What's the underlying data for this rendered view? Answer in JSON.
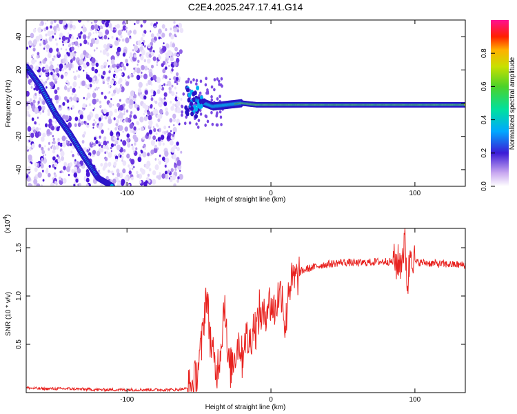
{
  "title": "C2E4.2025.247.17.41.G14",
  "chart_data": [
    {
      "type": "heatmap",
      "xlabel": "Height of straight line (km)",
      "ylabel": "Frequency (Hz)",
      "xlim": [
        -170,
        135
      ],
      "ylim": [
        -50,
        50
      ],
      "xticks": [
        -100,
        0,
        100
      ],
      "yticks": [
        -40,
        -20,
        0,
        20,
        40
      ],
      "colorbar": {
        "label": "Normalized spectral amplitude",
        "range": [
          0,
          1
        ],
        "ticks": [
          0.0,
          0.2,
          0.4,
          0.6,
          0.8
        ]
      },
      "noise_region_x": [
        -170,
        -62
      ],
      "ridges": [
        {
          "x": [
            -170,
            -160,
            -150,
            -140,
            -130,
            -120,
            -110
          ],
          "y": [
            22,
            10,
            -6,
            -18,
            -32,
            -45,
            -50
          ]
        },
        {
          "x": [
            -52,
            -40,
            -30,
            -20,
            -10,
            0,
            50,
            100,
            135
          ],
          "y": [
            2,
            -2,
            -1,
            0,
            -1,
            -1,
            -1,
            -1,
            -1
          ]
        }
      ]
    },
    {
      "type": "line",
      "xlabel": "Height of straight line (km)",
      "ylabel": "SNR (10 * v/v)",
      "y_multiplier": "(x10",
      "y_multiplier_exp": "4",
      "y_multiplier_close": ")",
      "xlim": [
        -170,
        135
      ],
      "ylim": [
        0,
        1.7
      ],
      "xticks": [
        -100,
        0,
        100
      ],
      "yticks": [
        0.5,
        1.0,
        1.5
      ],
      "series": [
        {
          "color": "#e8221f",
          "x": [
            -170,
            -160,
            -140,
            -120,
            -100,
            -80,
            -65,
            -55,
            -52,
            -48,
            -45,
            -42,
            -40,
            -38,
            -35,
            -32,
            -30,
            -28,
            -25,
            -22,
            -20,
            -18,
            -15,
            -12,
            -10,
            -8,
            -5,
            -2,
            0,
            3,
            5,
            8,
            10,
            12,
            15,
            18,
            20,
            25,
            30,
            35,
            40,
            50,
            60,
            70,
            80,
            90,
            93,
            95,
            97,
            100,
            110,
            120,
            135
          ],
          "y": [
            0.05,
            0.04,
            0.04,
            0.03,
            0.03,
            0.03,
            0.03,
            0.05,
            0.15,
            0.5,
            1.05,
            0.55,
            0.35,
            0.2,
            0.45,
            1.0,
            0.3,
            0.25,
            0.4,
            0.55,
            0.35,
            0.6,
            0.5,
            0.7,
            0.65,
            0.85,
            0.75,
            0.95,
            0.9,
            0.85,
            1.0,
            1.05,
            0.6,
            1.1,
            1.15,
            1.18,
            1.25,
            1.28,
            1.3,
            1.32,
            1.33,
            1.35,
            1.34,
            1.35,
            1.36,
            1.34,
            1.55,
            1.1,
            1.5,
            1.35,
            1.34,
            1.33,
            1.32
          ]
        }
      ]
    }
  ]
}
